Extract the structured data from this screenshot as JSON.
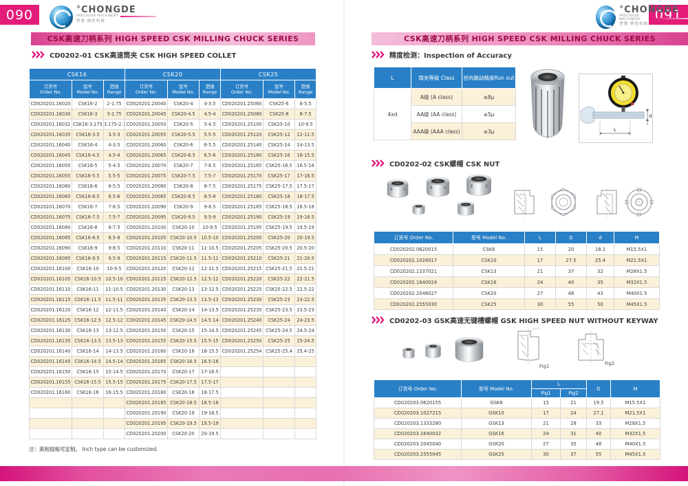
{
  "brand": {
    "name": "CHONGDE",
    "subtitle": "PRECISION MACHINERY",
    "chinese": "崇德 精密机械",
    "registered": "®"
  },
  "banner_text": "CSK高速刀柄系列  HIGH SPEED  CSK   MILLING CHUCK SERIES",
  "colors": {
    "accent": "#e31c79",
    "header_blue": "#2a80c6",
    "row_cream": "#fbf0d8",
    "banner_text": "#9e0d45"
  },
  "left_page": {
    "page_number": "090",
    "section_title": "CD0202-01 CSK高速筒夹  CSK HIGH SPEED COLLET",
    "note": "注：英制规格可定制。 Inch type can be customized.",
    "collet_table": {
      "group_headers": [
        "CSK16",
        "CSK20",
        "CSK25"
      ],
      "column_headers": [
        "订货号\nOrder No.",
        "型号\nModel No.",
        "范围\nRange"
      ],
      "rows": [
        [
          "CD020201.16020",
          "CSK16-2",
          "2-1.75",
          "CD020201.20040",
          "CSK20-4",
          "4-3.5",
          "CD020201.25060",
          "CSK25-6",
          "6-5.5"
        ],
        [
          "CD020201.16030",
          "CSK16-3",
          "3-2.75",
          "CD020201.20045",
          "CSK20-4.5",
          "4.5-4",
          "CD020201.25080",
          "CSK25-8",
          "8-7.5"
        ],
        [
          "CD020201.16032",
          "CSK16-3.175",
          "3.175-2.7",
          "CD020201.20050",
          "CSK20-5",
          "5-4.5",
          "CD020201.25100",
          "CSK25-10",
          "10-9.5"
        ],
        [
          "CD020201.16035",
          "CSK16-3.5",
          "3.5-3",
          "CD020201.20055",
          "CSK20-5.5",
          "5.5-5",
          "CD020201.25120",
          "CSK25-12",
          "12-11.5"
        ],
        [
          "CD020201.16040",
          "CSK16-4",
          "4-3.5",
          "CD020201.20060",
          "CSK20-6",
          "6-5.5",
          "CD020201.25140",
          "CSK25-14",
          "14-13.5"
        ],
        [
          "CD020201.16045",
          "CSK16-4.5",
          "4.5-4",
          "CD020201.20065",
          "CSK20-6.5",
          "6.5-6",
          "CD020201.25160",
          "CSK25-16",
          "16-15.5"
        ],
        [
          "CD020201.16050",
          "CSK16-5",
          "5-4.5",
          "CD020201.20070",
          "CSK20-7",
          "7-6.5",
          "CD020201.25165",
          "CSK25-16.5",
          "16.5-16"
        ],
        [
          "CD020201.16055",
          "CSK16-5.5",
          "5.5-5",
          "CD020201.20075",
          "CSK20-7.5",
          "7.5-7",
          "CD020201.25170",
          "CSK25-17",
          "17-16.5"
        ],
        [
          "CD020201.16060",
          "CSK16-6",
          "6-5.5",
          "CD020201.20080",
          "CSK20-8",
          "8-7.5",
          "CD020201.25175",
          "CSK25-17.5",
          "17.5-17"
        ],
        [
          "CD020201.16065",
          "CSK16-6.5",
          "6.5-6",
          "CD020201.20085",
          "CSK20-8.5",
          "8.5-8",
          "CD020201.25180",
          "CSK25-18",
          "18-17.5"
        ],
        [
          "CD020201.16070",
          "CSK16-7",
          "7-6.5",
          "CD020201.20090",
          "CSK20-9",
          "9-8.5",
          "CD020201.25185",
          "CSK25-18.5",
          "18.5-18"
        ],
        [
          "CD020201.16075",
          "CSK16-7.5",
          "7.5-7",
          "CD020201.20095",
          "CSK20-9.5",
          "9.5-9",
          "CD020201.25190",
          "CSK25-19",
          "19-18.5"
        ],
        [
          "CD020201.16080",
          "CSK16-8",
          "8-7.5",
          "CD020201.20100",
          "CSK20-10",
          "10-9.5",
          "CD020201.25195",
          "CSK25-19.5",
          "19.5-19"
        ],
        [
          "CD020201.16085",
          "CSK16-8.5",
          "8.5-8",
          "CD020201.20105",
          "CSK20-10.5",
          "10.5-10",
          "CD020201.25200",
          "CSK25-20",
          "20-19.5"
        ],
        [
          "CD020201.16090",
          "CSK16-9",
          "9-8.5",
          "CD020201.20110",
          "CSK20-11",
          "11-10.5",
          "CD020201.25205",
          "CSK25-20.5",
          "20.5-20"
        ],
        [
          "CD020201.16095",
          "CSK16-9.5",
          "9.5-9",
          "CD020201.20115",
          "CSK20-11.5",
          "11.5-11",
          "CD020201.25210",
          "CSK25-21",
          "21-20.5"
        ],
        [
          "CD020201.16100",
          "CSK16-10",
          "10-9.5",
          "CD020201.20120",
          "CSK20-12",
          "12-11.5",
          "CD020201.25215",
          "CSK25-21.5",
          "21.5-21"
        ],
        [
          "CD020201.16105",
          "CSK16-10.5",
          "10.5-10",
          "CD020201.20125",
          "CSK20-12.5",
          "12.5-12",
          "CD020201.25220",
          "CSK25-22",
          "22-21.5"
        ],
        [
          "CD020201.16110",
          "CSK16-11",
          "11-10.5",
          "CD020201.20130",
          "CSK20-13",
          "13-12.5",
          "CD020201.25225",
          "CSK25-22.5",
          "22.5-22"
        ],
        [
          "CD020201.16115",
          "CSK16-11.5",
          "11.5-11",
          "CD020201.20135",
          "CSK20-13.5",
          "13.5-13",
          "CD020201.25230",
          "CSK25-23",
          "23-22.5"
        ],
        [
          "CD020201.16120",
          "CSK16-12",
          "12-11.5",
          "CD020201.20140",
          "CSK20-14",
          "14-13.5",
          "CD020201.25235",
          "CSK25-23.5",
          "23.5-23"
        ],
        [
          "CD020201.16125",
          "CSK16-12.5",
          "12.5-12",
          "CD020201.20145",
          "CSK20-14.5",
          "14.5-14",
          "CD020201.25240",
          "CSK25-24",
          "24-23.5"
        ],
        [
          "CD020201.16130",
          "CSK16-13",
          "13-12.5",
          "CD020201.20150",
          "CSK20-15",
          "15-14.5",
          "CD020201.25245",
          "CSK25-24.5",
          "24.5-24"
        ],
        [
          "CD020201.16135",
          "CSK16-13.5",
          "13.5-13",
          "CD020201.20155",
          "CSK20-15.5",
          "15.5-15",
          "CD020201.25250",
          "CSK25-25",
          "25-24.5"
        ],
        [
          "CD020201.16140",
          "CSK16-14",
          "14-13.5",
          "CD020201.20160",
          "CSK20-16",
          "16-15.5",
          "CD020201.25254",
          "CSK25-25.4",
          "25.4-25"
        ],
        [
          "CD020201.16145",
          "CSK16-14.5",
          "14.5-14",
          "CD020201.20165",
          "CSK20-16.5",
          "16.5-16",
          "",
          "",
          ""
        ],
        [
          "CD020201.16150",
          "CSK16-15",
          "15-14.5",
          "CD020201.20170",
          "CSK20-17",
          "17-16.5",
          "",
          "",
          ""
        ],
        [
          "CD020201.16155",
          "CSK16-15.5",
          "15.5-15",
          "CD020201.20175",
          "CSK20-17.5",
          "17.5-17",
          "",
          "",
          ""
        ],
        [
          "CD020201.16160",
          "CSK16-16",
          "16-15.5",
          "CD020201.20180",
          "CSK20-18",
          "18-17.5",
          "",
          "",
          ""
        ],
        [
          "",
          "",
          "",
          "CD020201.20185",
          "CSK20-18.5",
          "18.5-18",
          "",
          "",
          ""
        ],
        [
          "",
          "",
          "",
          "CD020201.20190",
          "CSK20-19",
          "19-18.5",
          "",
          "",
          ""
        ],
        [
          "",
          "",
          "",
          "CD020201.20195",
          "CSK20-19.5",
          "19.5-19",
          "",
          "",
          ""
        ],
        [
          "",
          "",
          "",
          "CD020201.20200",
          "CSK20-20",
          "20-19.5",
          "",
          "",
          ""
        ]
      ]
    }
  },
  "right_page": {
    "page_number": "091",
    "accuracy_section": {
      "title": "精度检测：Inspection of Accuracy",
      "table": {
        "headers": [
          "L",
          "筒夹等级 Class",
          "径向跳动精度Run out"
        ],
        "l_value": "4xd",
        "rows": [
          {
            "class": "A级 (A  class)",
            "runout": "≤8μ"
          },
          {
            "class": "AA级 (AA  class)",
            "runout": "≤5μ"
          },
          {
            "class": "AAA级 (AAA  class)",
            "runout": "≤3μ"
          }
        ]
      },
      "diagram_labels": {
        "L": "L",
        "d": "d"
      }
    },
    "csk_nut_section": {
      "title": "CD0202-02 CSK螺帽 CSK NUT",
      "table": {
        "headers": [
          "订货号 Order No.",
          "型号 Model No.",
          "L",
          "D",
          "d",
          "M"
        ],
        "rows": [
          [
            "CD020202.0620015",
            "CSK6",
            "15",
            "20",
            "18.1",
            "M15.5X1"
          ],
          [
            "CD020202.1028017",
            "CSK10",
            "17",
            "27.5",
            "25.4",
            "M21.5X1"
          ],
          [
            "CD020202.1337021",
            "CSK13",
            "21",
            "37",
            "32",
            "M28X1.5"
          ],
          [
            "CD020202.1640024",
            "CSK16",
            "24",
            "40",
            "35",
            "M32X1.5"
          ],
          [
            "CD020202.2048027",
            "CSK20",
            "27",
            "48",
            "43",
            "M40X1.5"
          ],
          [
            "CD020202.2555030",
            "CSK25",
            "30",
            "55",
            "50",
            "M45X1.5"
          ]
        ]
      }
    },
    "gsk_nut_section": {
      "title": "CD0202-03 GSK高速无键槽螺帽 GSK HIGH SPEED NUT WITHOUT KEYWAY",
      "fig_labels": [
        "Fig1",
        "Fig2"
      ],
      "table": {
        "headers": {
          "order": "订货号 Order No.",
          "model": "型号 Model No.",
          "l": "L",
          "fig1": "Fig1",
          "fig2": "Fig2",
          "d": "D",
          "m": "M"
        },
        "rows": [
          [
            "CD020203.0620155",
            "GSK6",
            "15",
            "21",
            "19.5",
            "M15.5X1"
          ],
          [
            "CD020203.1027215",
            "GSK10",
            "17",
            "24",
            "27.1",
            "M21.5X1"
          ],
          [
            "CD020203.1333280",
            "GSK13",
            "21",
            "28",
            "33",
            "M28X1.5"
          ],
          [
            "CD020203.1640032",
            "GSK16",
            "24",
            "31",
            "40",
            "M32X1.5"
          ],
          [
            "CD020203.2045040",
            "GSK20",
            "27",
            "35",
            "48",
            "M40X1.5"
          ],
          [
            "CD020203.2555045",
            "GSK25",
            "30",
            "37",
            "55",
            "M45X1.5"
          ]
        ]
      }
    }
  }
}
